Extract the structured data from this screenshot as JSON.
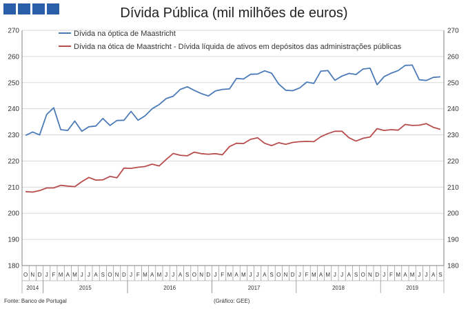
{
  "header": {
    "title": "Dívida Pública (mil milhões de euros)",
    "logo_color": "#2a5ea8"
  },
  "footer": {
    "source": "Fonte: Banco de Portugal",
    "credit": "(Gráfico: GEE)"
  },
  "chart_data": {
    "type": "line",
    "title": "Dívida Pública (mil milhões de euros)",
    "ylim": [
      180,
      270
    ],
    "y_ticks": [
      180,
      190,
      200,
      210,
      220,
      230,
      240,
      250,
      260,
      270
    ],
    "secondary_axis": true,
    "grid": true,
    "legend_position": "top",
    "month_labels": [
      "O",
      "N",
      "D",
      "J",
      "F",
      "M",
      "A",
      "M",
      "J",
      "J",
      "A",
      "S",
      "O",
      "N",
      "D",
      "J",
      "F",
      "M",
      "A",
      "M",
      "J",
      "J",
      "A",
      "S",
      "O",
      "N",
      "D",
      "J",
      "F",
      "M",
      "A",
      "M",
      "J",
      "J",
      "A",
      "S",
      "O",
      "N",
      "D",
      "J",
      "F",
      "M",
      "A",
      "M",
      "J",
      "J",
      "A",
      "S",
      "O",
      "N",
      "D",
      "J",
      "F",
      "M",
      "A",
      "M",
      "J",
      "J",
      "A",
      "S"
    ],
    "year_labels": [
      {
        "label": "2014",
        "first": 0,
        "last": 2
      },
      {
        "label": "2015",
        "first": 3,
        "last": 14
      },
      {
        "label": "2016",
        "first": 15,
        "last": 26
      },
      {
        "label": "2017",
        "first": 27,
        "last": 38
      },
      {
        "label": "2018",
        "first": 39,
        "last": 50
      },
      {
        "label": "2019",
        "first": 51,
        "last": 59
      }
    ],
    "series": [
      {
        "name": "Dívida na óptica de Maastricht",
        "color": "#4a7ab8",
        "values": [
          229.8,
          231.1,
          230.0,
          237.8,
          240.4,
          232.0,
          231.7,
          235.3,
          231.4,
          233.1,
          233.4,
          236.3,
          233.6,
          235.5,
          235.6,
          239.0,
          235.6,
          237.3,
          240.0,
          241.6,
          243.9,
          244.8,
          247.4,
          248.4,
          247.0,
          245.8,
          244.9,
          246.8,
          247.4,
          247.6,
          251.6,
          251.4,
          253.2,
          253.3,
          254.5,
          253.6,
          249.5,
          247.1,
          246.9,
          248.0,
          250.2,
          249.7,
          254.4,
          254.6,
          250.9,
          252.5,
          253.5,
          253.1,
          255.2,
          255.5,
          249.2,
          252.3,
          253.6,
          254.6,
          256.6,
          256.7,
          251.1,
          250.8,
          252.0,
          252.2
        ]
      },
      {
        "name": "Dívida na ótica de Maastricht - Dívida líquida de ativos em depósitos das administrações públicas",
        "color": "#b84c4c",
        "values": [
          208.3,
          208.1,
          208.7,
          209.7,
          209.7,
          210.7,
          210.4,
          210.2,
          212.1,
          213.7,
          212.7,
          212.8,
          214.1,
          213.6,
          217.3,
          217.2,
          217.6,
          217.9,
          218.8,
          218.1,
          220.6,
          222.9,
          222.2,
          222.0,
          223.4,
          222.8,
          222.6,
          222.8,
          222.4,
          225.5,
          226.8,
          226.7,
          228.3,
          228.9,
          226.8,
          225.9,
          227.0,
          226.4,
          227.1,
          227.4,
          227.5,
          227.4,
          229.3,
          230.5,
          231.4,
          231.4,
          228.9,
          227.6,
          228.7,
          229.2,
          232.4,
          231.7,
          232.0,
          231.8,
          234.0,
          233.6,
          233.7,
          234.3,
          232.9,
          232.1
        ]
      }
    ]
  }
}
